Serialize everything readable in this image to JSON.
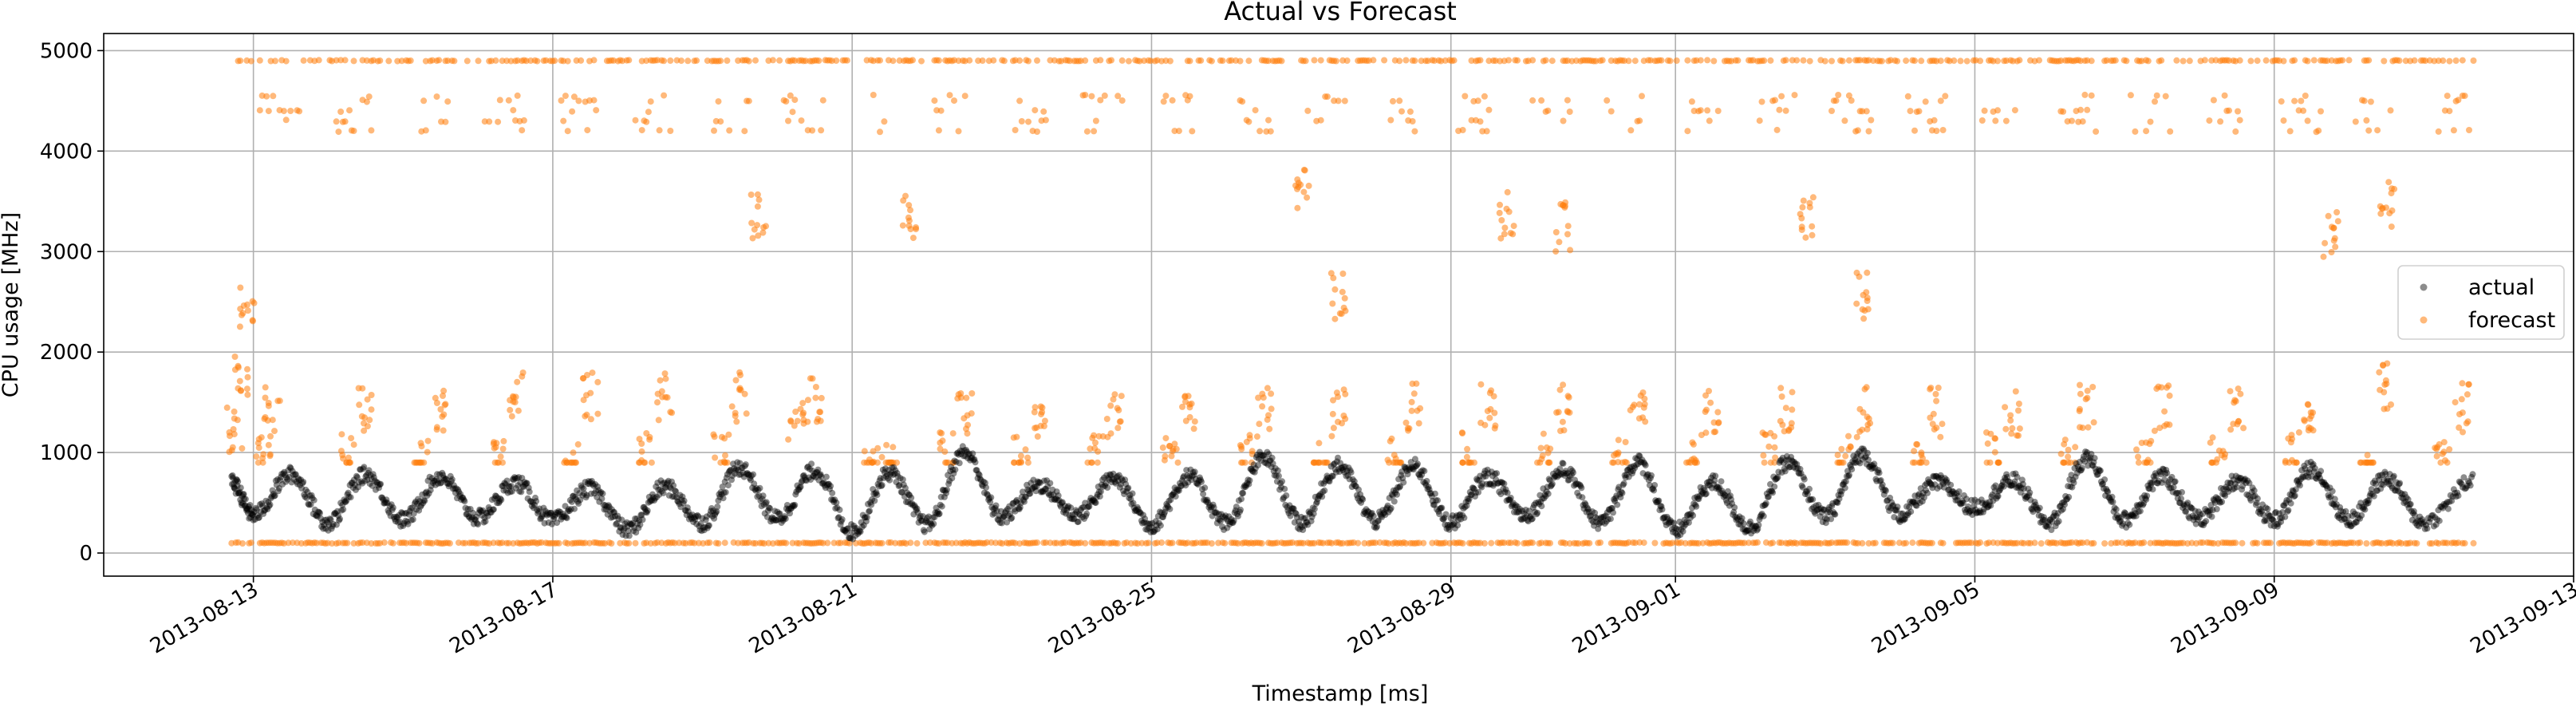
{
  "chart_data": {
    "type": "scatter",
    "title": "Actual vs Forecast",
    "xlabel": "Timestamp [ms]",
    "ylabel": "CPU usage [MHz]",
    "xlim": [
      "2013-08-11",
      "2013-09-13"
    ],
    "ylim": [
      -230,
      5170
    ],
    "grid": true,
    "legend_position": "center-right",
    "x_ticks": [
      "2013-08-13",
      "2013-08-17",
      "2013-08-21",
      "2013-08-25",
      "2013-08-29",
      "2013-09-01",
      "2013-09-05",
      "2013-09-09",
      "2013-09-13"
    ],
    "y_ticks": [
      0,
      1000,
      2000,
      3000,
      4000,
      5000
    ],
    "x_range": [
      "2013-08-12T17:00",
      "2013-09-11T16:00"
    ],
    "series": [
      {
        "name": "actual",
        "color": "#000000",
        "alpha": 0.45,
        "description": "daily cycle 250-850",
        "values": [
          [
            "2013-08-12T17:00",
            700
          ],
          [
            "2013-08-13T00:00",
            380
          ],
          [
            "2013-08-13T12:00",
            780
          ],
          [
            "2013-08-14T00:00",
            300
          ],
          [
            "2013-08-14T12:00",
            780
          ],
          [
            "2013-08-15T00:00",
            330
          ],
          [
            "2013-08-15T12:00",
            760
          ],
          [
            "2013-08-16T00:00",
            350
          ],
          [
            "2013-08-16T12:00",
            700
          ],
          [
            "2013-08-17T00:00",
            320
          ],
          [
            "2013-08-17T12:00",
            640
          ],
          [
            "2013-08-18T00:00",
            230
          ],
          [
            "2013-08-18T12:00",
            660
          ],
          [
            "2013-08-19T00:00",
            300
          ],
          [
            "2013-08-19T12:00",
            850
          ],
          [
            "2013-08-20T00:00",
            340
          ],
          [
            "2013-08-20T12:00",
            820
          ],
          [
            "2013-08-21T00:00",
            210
          ],
          [
            "2013-08-21T12:00",
            800
          ],
          [
            "2013-08-22T00:00",
            280
          ],
          [
            "2013-08-22T12:00",
            1000
          ],
          [
            "2013-08-23T00:00",
            360
          ],
          [
            "2013-08-23T12:00",
            680
          ],
          [
            "2013-08-24T00:00",
            380
          ],
          [
            "2013-08-24T12:00",
            740
          ],
          [
            "2013-08-25T00:00",
            280
          ],
          [
            "2013-08-25T12:00",
            760
          ],
          [
            "2013-08-26T00:00",
            300
          ],
          [
            "2013-08-26T12:00",
            950
          ],
          [
            "2013-08-27T00:00",
            300
          ],
          [
            "2013-08-27T12:00",
            870
          ],
          [
            "2013-08-28T00:00",
            320
          ],
          [
            "2013-08-28T12:00",
            860
          ],
          [
            "2013-08-29T00:00",
            300
          ],
          [
            "2013-08-29T12:00",
            760
          ],
          [
            "2013-08-30T00:00",
            380
          ],
          [
            "2013-08-30T12:00",
            820
          ],
          [
            "2013-08-31T00:00",
            300
          ],
          [
            "2013-08-31T12:00",
            900
          ],
          [
            "2013-09-01T00:00",
            220
          ],
          [
            "2013-09-01T12:00",
            700
          ],
          [
            "2013-09-02T00:00",
            250
          ],
          [
            "2013-09-02T12:00",
            900
          ],
          [
            "2013-09-03T00:00",
            360
          ],
          [
            "2013-09-03T12:00",
            980
          ],
          [
            "2013-09-04T00:00",
            380
          ],
          [
            "2013-09-04T12:00",
            700
          ],
          [
            "2013-09-05T00:00",
            450
          ],
          [
            "2013-09-05T12:00",
            720
          ],
          [
            "2013-09-06T00:00",
            300
          ],
          [
            "2013-09-06T12:00",
            940
          ],
          [
            "2013-09-07T00:00",
            330
          ],
          [
            "2013-09-07T12:00",
            760
          ],
          [
            "2013-09-08T00:00",
            340
          ],
          [
            "2013-09-08T12:00",
            720
          ],
          [
            "2013-09-09T00:00",
            330
          ],
          [
            "2013-09-09T12:00",
            840
          ],
          [
            "2013-09-10T00:00",
            330
          ],
          [
            "2013-09-10T12:00",
            740
          ],
          [
            "2013-09-11T00:00",
            300
          ],
          [
            "2013-09-11T16:00",
            720
          ]
        ]
      },
      {
        "name": "forecast",
        "color": "#ff7f0e",
        "alpha": 0.55,
        "values": [
          [
            "2013-08-12T18:00",
            1500
          ],
          [
            "2013-08-12T20:00",
            2000
          ],
          [
            "2013-08-12T22:00",
            2700
          ],
          [
            "2013-08-13T03:00",
            1200
          ],
          [
            "2013-08-13T06:00",
            1650
          ],
          [
            "2013-08-14T06:00",
            1200
          ],
          [
            "2013-08-14T12:00",
            1650
          ],
          [
            "2013-08-15T06:00",
            1150
          ],
          [
            "2013-08-15T12:00",
            1700
          ],
          [
            "2013-08-16T06:00",
            1250
          ],
          [
            "2013-08-16T12:00",
            1800
          ],
          [
            "2013-08-17T06:00",
            1150
          ],
          [
            "2013-08-17T12:00",
            1800
          ],
          [
            "2013-08-18T06:00",
            1200
          ],
          [
            "2013-08-18T12:00",
            1800
          ],
          [
            "2013-08-19T06:00",
            1200
          ],
          [
            "2013-08-19T12:00",
            1800
          ],
          [
            "2013-08-20T06:00",
            1500
          ],
          [
            "2013-08-20T12:00",
            1800
          ],
          [
            "2013-08-21T06:00",
            1050
          ],
          [
            "2013-08-21T12:00",
            1100
          ],
          [
            "2013-08-22T06:00",
            1200
          ],
          [
            "2013-08-22T12:00",
            1650
          ],
          [
            "2013-08-23T06:00",
            1200
          ],
          [
            "2013-08-23T12:00",
            1650
          ],
          [
            "2013-08-24T06:00",
            1200
          ],
          [
            "2013-08-24T12:00",
            1650
          ],
          [
            "2013-08-25T06:00",
            1200
          ],
          [
            "2013-08-25T12:00",
            1650
          ],
          [
            "2013-08-26T06:00",
            1200
          ],
          [
            "2013-08-26T12:00",
            1650
          ],
          [
            "2013-08-27T06:00",
            1100
          ],
          [
            "2013-08-27T12:00",
            1650
          ],
          [
            "2013-08-28T06:00",
            1150
          ],
          [
            "2013-08-28T12:00",
            1700
          ],
          [
            "2013-08-29T06:00",
            1200
          ],
          [
            "2013-08-29T12:00",
            1700
          ],
          [
            "2013-08-30T06:00",
            1200
          ],
          [
            "2013-08-30T12:00",
            1700
          ],
          [
            "2013-08-31T06:00",
            1200
          ],
          [
            "2013-08-31T12:00",
            1700
          ],
          [
            "2013-09-01T06:00",
            1200
          ],
          [
            "2013-09-01T12:00",
            1650
          ],
          [
            "2013-09-02T06:00",
            1200
          ],
          [
            "2013-09-02T12:00",
            1650
          ],
          [
            "2013-09-03T06:00",
            1200
          ],
          [
            "2013-09-03T12:00",
            1650
          ],
          [
            "2013-09-04T06:00",
            1200
          ],
          [
            "2013-09-04T12:00",
            1650
          ],
          [
            "2013-09-05T06:00",
            1200
          ],
          [
            "2013-09-05T12:00",
            1650
          ],
          [
            "2013-09-06T06:00",
            1200
          ],
          [
            "2013-09-06T12:00",
            1700
          ],
          [
            "2013-09-07T06:00",
            1200
          ],
          [
            "2013-09-07T12:00",
            1700
          ],
          [
            "2013-09-08T06:00",
            1200
          ],
          [
            "2013-09-08T12:00",
            1700
          ],
          [
            "2013-09-09T06:00",
            1200
          ],
          [
            "2013-09-09T12:00",
            1700
          ],
          [
            "2013-09-10T06:00",
            1100
          ],
          [
            "2013-09-10T12:00",
            1900
          ],
          [
            "2013-09-11T06:00",
            1150
          ],
          [
            "2013-09-11T12:00",
            1700
          ],
          [
            "2013-08-19T18:00",
            3600
          ],
          [
            "2013-08-21T18:00",
            3600
          ],
          [
            "2013-08-29T18:00",
            3600
          ],
          [
            "2013-08-30T12:00",
            3500
          ],
          [
            "2013-09-02T18:00",
            3600
          ],
          [
            "2013-09-03T12:00",
            2830
          ],
          [
            "2013-08-27T00:00",
            3820
          ],
          [
            "2013-08-27T12:00",
            2800
          ],
          [
            "2013-09-09T18:00",
            3400
          ],
          [
            "2013-09-10T12:00",
            3700
          ]
        ],
        "bands": {
          "top": 4900,
          "upper": [
            4200,
            4600
          ],
          "bottom": 100
        }
      }
    ]
  }
}
